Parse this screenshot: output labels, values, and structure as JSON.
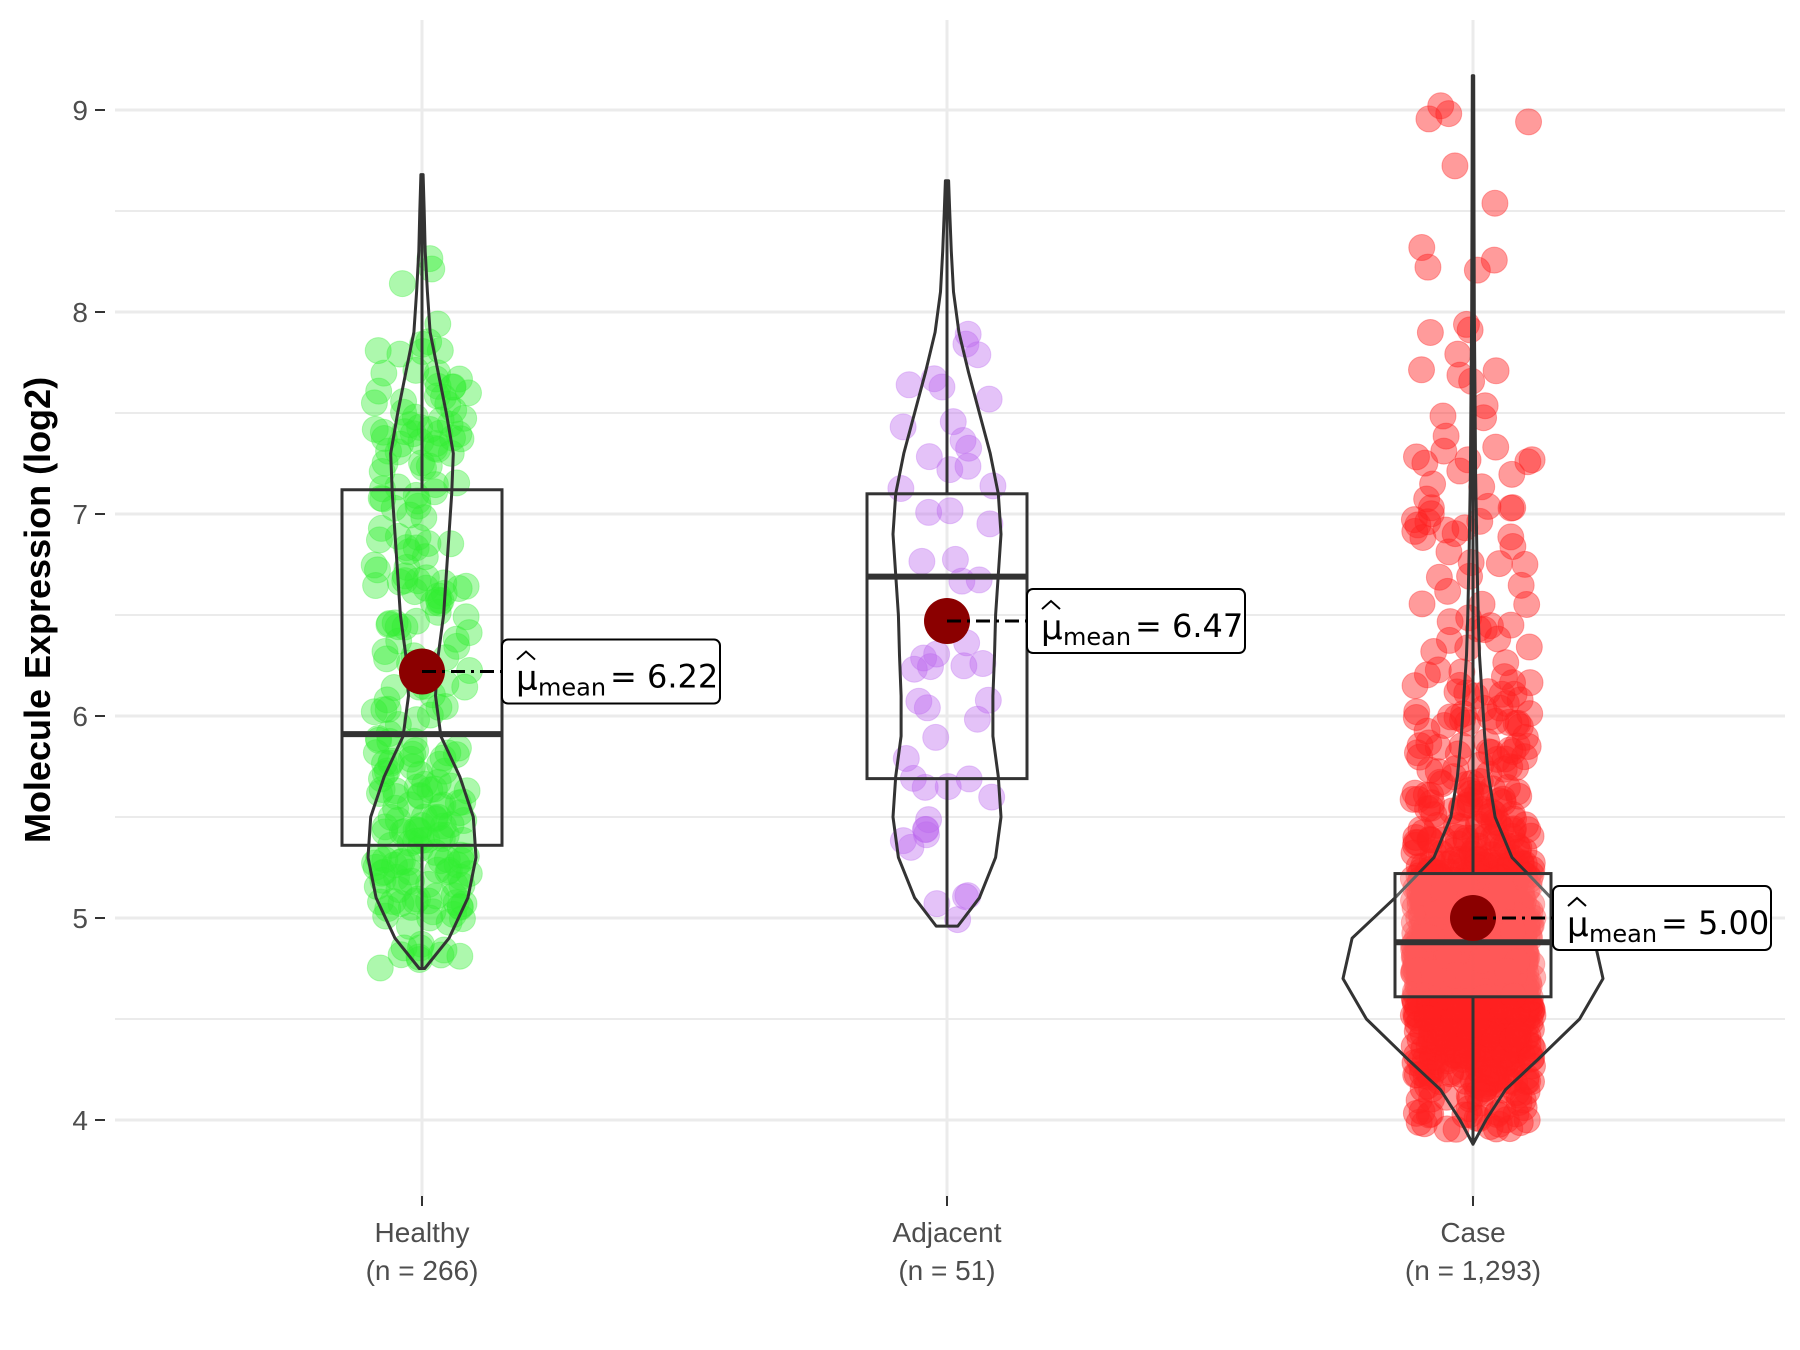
{
  "chart_data": {
    "type": "violin-box-jitter",
    "title": "",
    "xlabel": "",
    "ylabel": "Molecule Expression (log2)",
    "ylim": [
      3.65,
      9.45
    ],
    "yticks": [
      4,
      5,
      6,
      7,
      8,
      9
    ],
    "grid": true,
    "groups": [
      {
        "name": "Healthy",
        "n_label": "(n = 266)",
        "color": "#33ee33",
        "min": 4.75,
        "max": 8.68,
        "q1": 5.36,
        "median": 5.91,
        "q3": 7.12,
        "mean": 6.22,
        "mean_prefix": "mean",
        "mean_label": "= 6.22",
        "sample_points": 266,
        "density": [
          [
            4.75,
            0.05
          ],
          [
            4.9,
            0.5
          ],
          [
            5.1,
            0.85
          ],
          [
            5.3,
            1.0
          ],
          [
            5.5,
            0.95
          ],
          [
            5.7,
            0.7
          ],
          [
            5.9,
            0.35
          ],
          [
            6.1,
            0.25
          ],
          [
            6.3,
            0.3
          ],
          [
            6.5,
            0.4
          ],
          [
            6.7,
            0.45
          ],
          [
            6.9,
            0.5
          ],
          [
            7.1,
            0.55
          ],
          [
            7.3,
            0.58
          ],
          [
            7.5,
            0.45
          ],
          [
            7.7,
            0.3
          ],
          [
            7.9,
            0.15
          ],
          [
            8.1,
            0.1
          ],
          [
            8.3,
            0.06
          ],
          [
            8.5,
            0.04
          ],
          [
            8.68,
            0.02
          ]
        ]
      },
      {
        "name": "Adjacent",
        "n_label": "(n = 51)",
        "color": "#bb66ee",
        "min": 4.96,
        "max": 8.65,
        "q1": 5.69,
        "median": 6.69,
        "q3": 7.1,
        "mean": 6.47,
        "mean_prefix": "mean",
        "mean_label": "= 6.47",
        "sample_points": 51,
        "density": [
          [
            4.96,
            0.2
          ],
          [
            5.1,
            0.6
          ],
          [
            5.3,
            0.9
          ],
          [
            5.5,
            1.0
          ],
          [
            5.7,
            0.95
          ],
          [
            5.9,
            0.85
          ],
          [
            6.1,
            0.85
          ],
          [
            6.3,
            0.88
          ],
          [
            6.5,
            0.9
          ],
          [
            6.7,
            0.95
          ],
          [
            6.9,
            1.0
          ],
          [
            7.1,
            0.95
          ],
          [
            7.3,
            0.8
          ],
          [
            7.5,
            0.6
          ],
          [
            7.7,
            0.4
          ],
          [
            7.9,
            0.22
          ],
          [
            8.1,
            0.12
          ],
          [
            8.3,
            0.08
          ],
          [
            8.5,
            0.05
          ],
          [
            8.65,
            0.03
          ]
        ]
      },
      {
        "name": "Case",
        "n_label": "(n = 1,293)",
        "color": "#ff2222",
        "min": 3.88,
        "max": 9.17,
        "q1": 4.61,
        "median": 4.88,
        "q3": 5.22,
        "mean": 5.0,
        "mean_prefix": "mean",
        "mean_label": "= 5.00",
        "sample_points": 1293,
        "density": [
          [
            3.88,
            0.0
          ],
          [
            4.0,
            0.1
          ],
          [
            4.15,
            0.25
          ],
          [
            4.3,
            0.5
          ],
          [
            4.5,
            0.82
          ],
          [
            4.7,
            1.0
          ],
          [
            4.9,
            0.93
          ],
          [
            5.1,
            0.6
          ],
          [
            5.3,
            0.3
          ],
          [
            5.5,
            0.17
          ],
          [
            5.7,
            0.12
          ],
          [
            5.9,
            0.09
          ],
          [
            6.1,
            0.07
          ],
          [
            6.3,
            0.05
          ],
          [
            6.5,
            0.04
          ],
          [
            6.8,
            0.03
          ],
          [
            7.2,
            0.02
          ],
          [
            7.6,
            0.015
          ],
          [
            8.0,
            0.01
          ],
          [
            8.5,
            0.008
          ],
          [
            9.17,
            0.005
          ]
        ]
      }
    ]
  }
}
